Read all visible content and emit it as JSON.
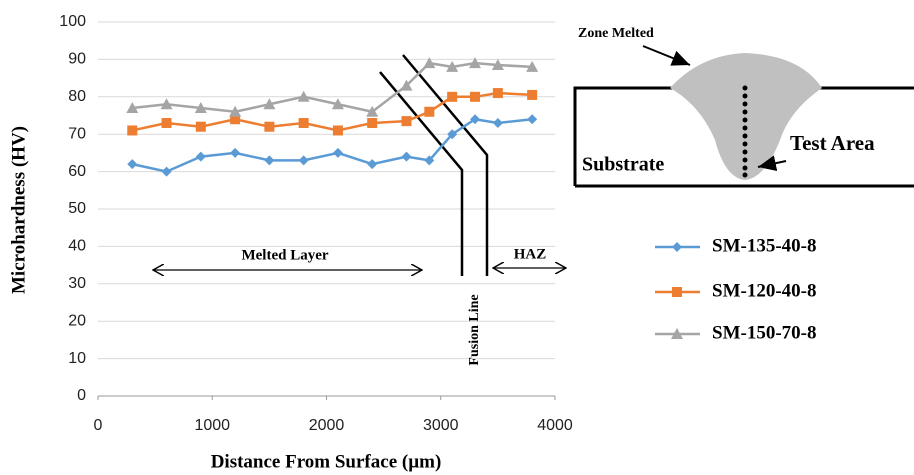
{
  "chart_data": {
    "type": "line",
    "x_label": "Distance From Surface (µm)",
    "y_label": "Microhardness (HV)",
    "x": [
      300,
      600,
      900,
      1200,
      1500,
      1800,
      2100,
      2400,
      2700,
      2900,
      3100,
      3300,
      3500,
      3800
    ],
    "series": [
      {
        "name": "SM-135-40-8",
        "color": "#5b9bd5",
        "marker": "diamond",
        "values": [
          62,
          60,
          64,
          65,
          63,
          63,
          65,
          62,
          64,
          63,
          70,
          74,
          73,
          74
        ]
      },
      {
        "name": "SM-120-40-8",
        "color": "#ed7d31",
        "marker": "square",
        "values": [
          71,
          73,
          72,
          74,
          72,
          73,
          71,
          73,
          73.5,
          76,
          80,
          80,
          81,
          80.5
        ]
      },
      {
        "name": "SM-150-70-8",
        "color": "#a5a5a5",
        "marker": "triangle",
        "values": [
          77,
          78,
          77,
          76,
          78,
          80,
          78,
          76,
          83,
          89,
          88,
          89,
          88.5,
          88
        ]
      }
    ],
    "xlim": [
      0,
      4000
    ],
    "xticks": [
      0,
      1000,
      2000,
      3000,
      4000
    ],
    "ylim": [
      0,
      100
    ],
    "yticks": [
      0,
      10,
      20,
      30,
      40,
      50,
      60,
      70,
      80,
      90,
      100
    ],
    "grid": true,
    "annotations": [
      "Melted Layer",
      "HAZ",
      "Fusion Line",
      "Zone Melted",
      "Test Area",
      "Substrate"
    ]
  }
}
